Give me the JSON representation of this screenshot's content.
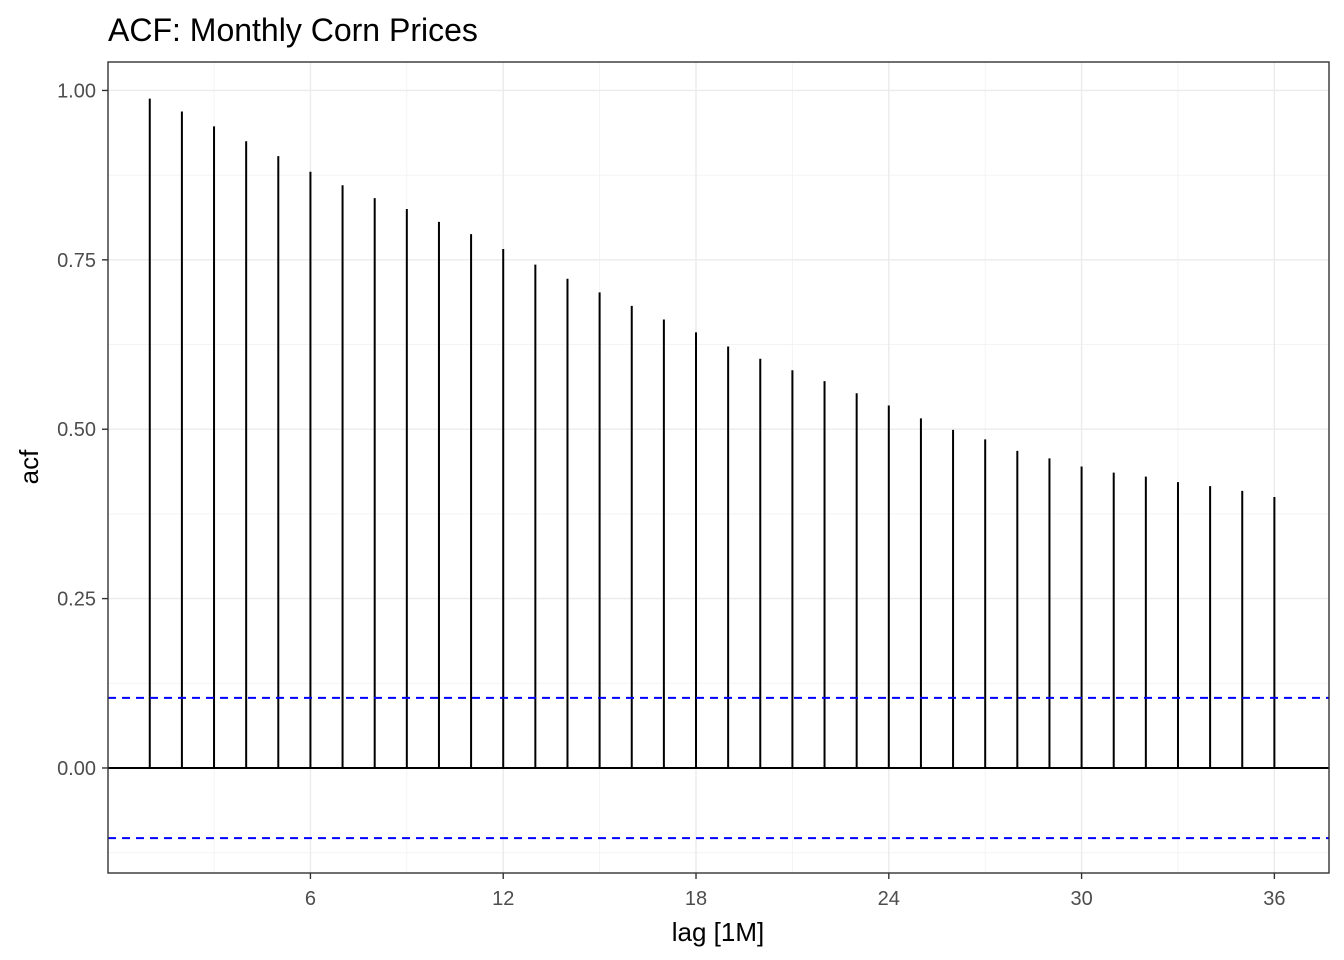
{
  "chart_data": {
    "type": "bar",
    "title": "ACF: Monthly Corn Prices",
    "xlabel": "lag [1M]",
    "ylabel": "acf",
    "x": [
      1,
      2,
      3,
      4,
      5,
      6,
      7,
      8,
      9,
      10,
      11,
      12,
      13,
      14,
      15,
      16,
      17,
      18,
      19,
      20,
      21,
      22,
      23,
      24,
      25,
      26,
      27,
      28,
      29,
      30,
      31,
      32,
      33,
      34,
      35,
      36
    ],
    "values": [
      0.988,
      0.969,
      0.947,
      0.925,
      0.903,
      0.88,
      0.86,
      0.841,
      0.825,
      0.806,
      0.788,
      0.766,
      0.743,
      0.722,
      0.702,
      0.682,
      0.662,
      0.643,
      0.622,
      0.604,
      0.587,
      0.571,
      0.553,
      0.535,
      0.516,
      0.499,
      0.485,
      0.468,
      0.457,
      0.445,
      0.436,
      0.43,
      0.422,
      0.416,
      0.409,
      0.4
    ],
    "confidence_bound": 0.1035,
    "xlim": [
      -0.3,
      37.7
    ],
    "ylim": [
      -0.155,
      1.042
    ],
    "x_ticks": [
      6,
      12,
      18,
      24,
      30,
      36
    ],
    "x_tick_labels": [
      "6",
      "12",
      "18",
      "24",
      "30",
      "36"
    ],
    "y_ticks": [
      0.0,
      0.25,
      0.5,
      0.75,
      1.0
    ],
    "y_tick_labels": [
      "0.00",
      "0.25",
      "0.50",
      "0.75",
      "1.00"
    ],
    "grid": true,
    "colors": {
      "stem": "#000000",
      "confidence": "#0000ff",
      "grid": "#ebebeb",
      "background": "#ffffff"
    }
  }
}
